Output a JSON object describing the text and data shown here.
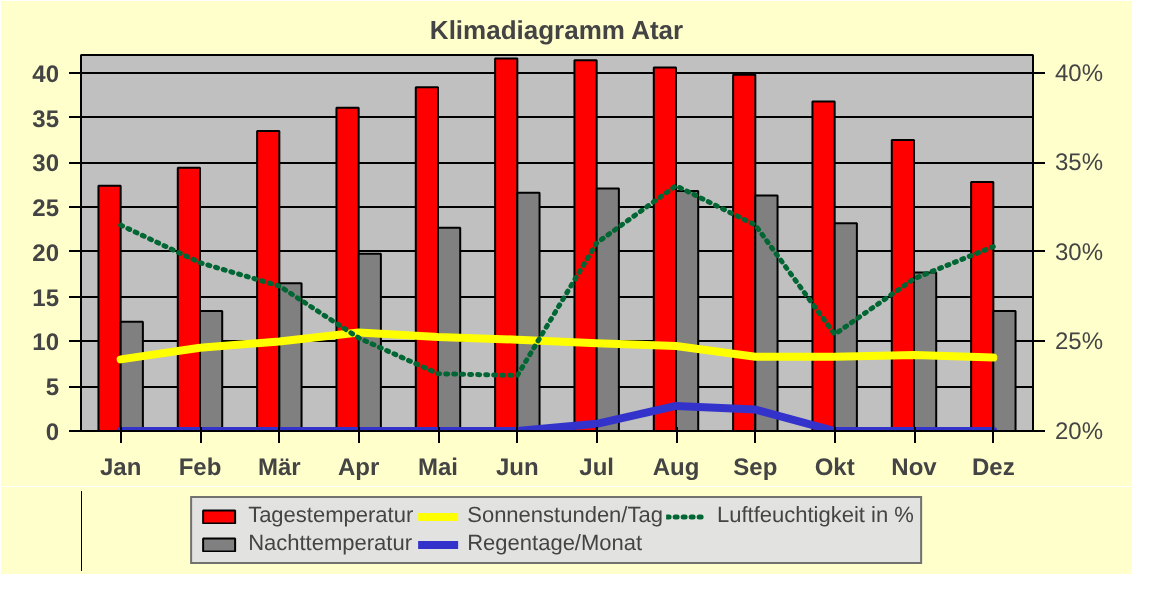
{
  "chart_data": {
    "type": "bar",
    "title": "Klimadiagramm Atar",
    "categories": [
      "Jan",
      "Feb",
      "Mär",
      "Apr",
      "Mai",
      "Jun",
      "Jul",
      "Aug",
      "Sep",
      "Okt",
      "Nov",
      "Dez"
    ],
    "series": [
      {
        "name": "Tagestemperatur",
        "color": "#ff0000",
        "values": [
          27.4,
          29.4,
          33.5,
          36.1,
          38.4,
          41.6,
          41.4,
          40.6,
          39.8,
          36.8,
          32.5,
          27.8
        ]
      },
      {
        "name": "Nachttemperatur",
        "color": "#808080",
        "values": [
          12.2,
          13.4,
          16.5,
          19.8,
          22.7,
          26.6,
          27.1,
          26.8,
          26.3,
          23.2,
          17.7,
          13.4
        ]
      },
      {
        "name": "Sonnenstunden/Tag",
        "type": "line",
        "color": "#ffff00",
        "line_style": "solid",
        "values": [
          8.0,
          9.3,
          10.0,
          11.0,
          10.5,
          10.2,
          9.8,
          9.5,
          8.3,
          8.3,
          8.5,
          8.2
        ]
      },
      {
        "name": "Regentage/Monat",
        "type": "line",
        "color": "#3333cc",
        "line_style": "solid",
        "values": [
          0,
          0,
          0,
          0,
          0,
          0,
          0.8,
          2.8,
          2.4,
          0,
          0,
          0
        ]
      },
      {
        "name": "Luftfeuchtigkeit in %",
        "type": "line",
        "color": "#006633",
        "line_style": "dotted",
        "axis": "y2",
        "values": [
          31.5,
          29.4,
          28.1,
          25.2,
          23.2,
          23.1,
          30.5,
          33.7,
          31.5,
          25.4,
          28.5,
          30.3
        ]
      }
    ],
    "ylim": [
      0,
      42
    ],
    "yticks": [
      0,
      5,
      10,
      15,
      20,
      25,
      30,
      35,
      40
    ],
    "y2lim": [
      20,
      41
    ],
    "y2ticks": [
      {
        "value": 20,
        "label": "20%"
      },
      {
        "value": 25,
        "label": "25%"
      },
      {
        "value": 30,
        "label": "30%"
      },
      {
        "value": 35,
        "label": "35%"
      },
      {
        "value": 40,
        "label": "40%"
      }
    ],
    "grid": "y",
    "legend": "bottom"
  }
}
